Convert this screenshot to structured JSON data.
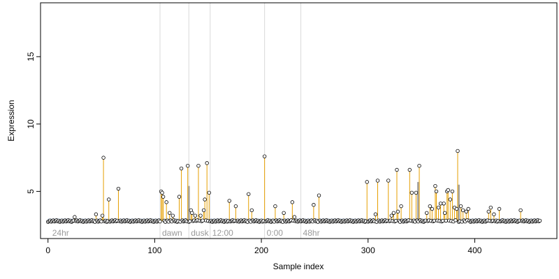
{
  "chart_data": {
    "type": "scatter",
    "title": "",
    "xlabel": "Sample index",
    "ylabel": "Expression",
    "xlim": [
      -7,
      477
    ],
    "ylim": [
      1.5,
      19
    ],
    "x_ticks": [
      0,
      100,
      200,
      300,
      400
    ],
    "y_ticks": [
      5,
      10,
      15
    ],
    "grid": false,
    "baseline": 2.8,
    "colors": {
      "stem": "#e69f00",
      "highlight_stem": "#a6a6a6",
      "baseline_band": "#7a9fd0",
      "region_line": "#d9d9d9",
      "point_fill": "#ffffff",
      "point_stroke": "#000000"
    },
    "regions": [
      {
        "label": "24hr",
        "x": 2
      },
      {
        "label": "dawn",
        "x": 105
      },
      {
        "label": "dusk",
        "x": 132
      },
      {
        "label": "12:00",
        "x": 152
      },
      {
        "label": "0:00",
        "x": 203
      },
      {
        "label": "48hr",
        "x": 237
      }
    ],
    "highlight_bars": [
      {
        "x": 132,
        "y": 5.4
      },
      {
        "x": 347,
        "y": 5.7
      },
      {
        "x": 385,
        "y": 5.5
      }
    ],
    "peaks": [
      {
        "x": 25,
        "y": 3.1
      },
      {
        "x": 45,
        "y": 3.3
      },
      {
        "x": 51,
        "y": 3.2
      },
      {
        "x": 52,
        "y": 7.5
      },
      {
        "x": 57,
        "y": 4.4
      },
      {
        "x": 66,
        "y": 5.2
      },
      {
        "x": 106,
        "y": 5.0
      },
      {
        "x": 107,
        "y": 4.9
      },
      {
        "x": 108,
        "y": 4.6
      },
      {
        "x": 111,
        "y": 4.2
      },
      {
        "x": 114,
        "y": 3.4
      },
      {
        "x": 117,
        "y": 3.2
      },
      {
        "x": 123,
        "y": 4.6
      },
      {
        "x": 125,
        "y": 6.7
      },
      {
        "x": 131,
        "y": 6.9
      },
      {
        "x": 134,
        "y": 3.6
      },
      {
        "x": 135,
        "y": 3.4
      },
      {
        "x": 138,
        "y": 3.2
      },
      {
        "x": 141,
        "y": 6.9
      },
      {
        "x": 143,
        "y": 3.2
      },
      {
        "x": 146,
        "y": 3.6
      },
      {
        "x": 147,
        "y": 4.4
      },
      {
        "x": 149,
        "y": 7.1
      },
      {
        "x": 151,
        "y": 4.9
      },
      {
        "x": 170,
        "y": 4.3
      },
      {
        "x": 176,
        "y": 3.9
      },
      {
        "x": 188,
        "y": 4.8
      },
      {
        "x": 191,
        "y": 3.6
      },
      {
        "x": 203,
        "y": 7.6
      },
      {
        "x": 213,
        "y": 3.9
      },
      {
        "x": 221,
        "y": 3.4
      },
      {
        "x": 229,
        "y": 4.2
      },
      {
        "x": 231,
        "y": 3.1
      },
      {
        "x": 249,
        "y": 4.0
      },
      {
        "x": 254,
        "y": 4.7
      },
      {
        "x": 299,
        "y": 5.7
      },
      {
        "x": 307,
        "y": 3.3
      },
      {
        "x": 309,
        "y": 5.8
      },
      {
        "x": 319,
        "y": 5.8
      },
      {
        "x": 322,
        "y": 3.2
      },
      {
        "x": 324,
        "y": 3.4
      },
      {
        "x": 327,
        "y": 6.6
      },
      {
        "x": 328,
        "y": 3.5
      },
      {
        "x": 331,
        "y": 3.9
      },
      {
        "x": 339,
        "y": 6.6
      },
      {
        "x": 341,
        "y": 4.9
      },
      {
        "x": 345,
        "y": 4.9
      },
      {
        "x": 348,
        "y": 6.9
      },
      {
        "x": 355,
        "y": 3.4
      },
      {
        "x": 358,
        "y": 3.9
      },
      {
        "x": 360,
        "y": 3.7
      },
      {
        "x": 363,
        "y": 5.4
      },
      {
        "x": 364,
        "y": 5.0
      },
      {
        "x": 366,
        "y": 3.8
      },
      {
        "x": 368,
        "y": 4.1
      },
      {
        "x": 371,
        "y": 4.1
      },
      {
        "x": 372,
        "y": 3.4
      },
      {
        "x": 374,
        "y": 5.0
      },
      {
        "x": 375,
        "y": 5.1
      },
      {
        "x": 377,
        "y": 4.4
      },
      {
        "x": 379,
        "y": 5.0
      },
      {
        "x": 381,
        "y": 3.8
      },
      {
        "x": 383,
        "y": 3.7
      },
      {
        "x": 384,
        "y": 8.0
      },
      {
        "x": 387,
        "y": 3.9
      },
      {
        "x": 389,
        "y": 3.6
      },
      {
        "x": 392,
        "y": 3.5
      },
      {
        "x": 394,
        "y": 3.7
      },
      {
        "x": 413,
        "y": 3.5
      },
      {
        "x": 415,
        "y": 3.8
      },
      {
        "x": 418,
        "y": 3.3
      },
      {
        "x": 423,
        "y": 3.7
      },
      {
        "x": 443,
        "y": 3.6
      }
    ],
    "n_samples": 462
  }
}
